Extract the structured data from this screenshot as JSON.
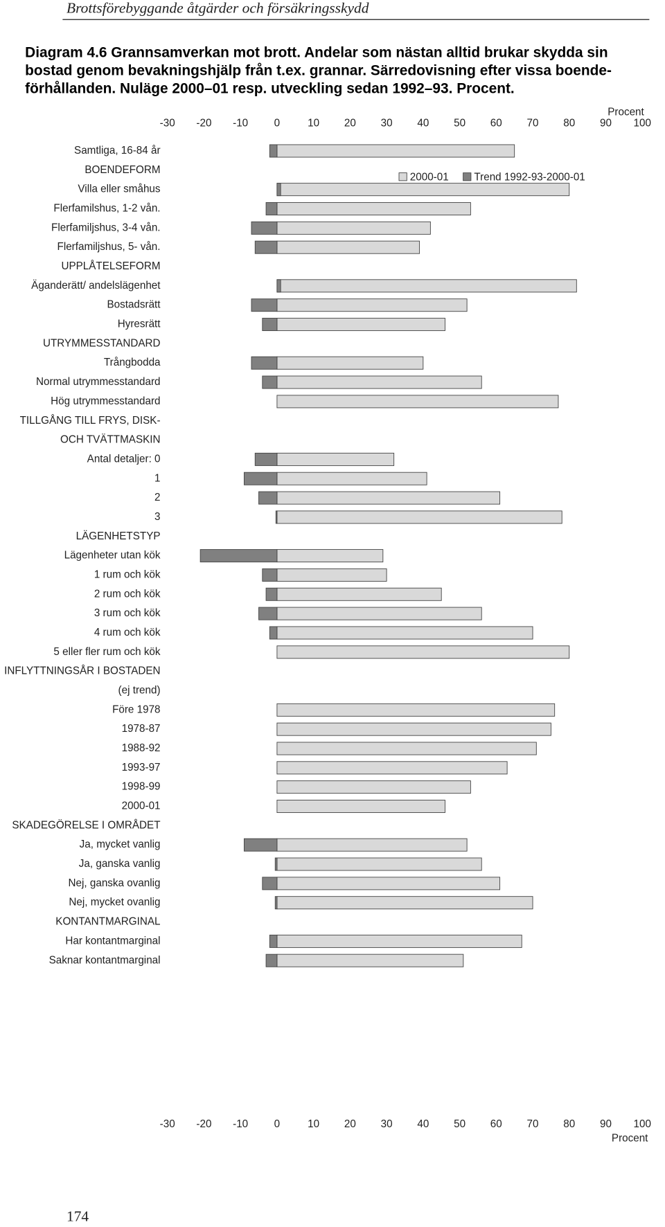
{
  "page_header": "Brottsförebyggande åtgärder och försäkringsskydd",
  "page_number": "174",
  "chart_data": {
    "type": "bar",
    "orientation": "horizontal",
    "title": [
      "Diagram 4.6  Grannsamverkan mot brott. Andelar som nästan alltid brukar skydda sin",
      "bostad genom bevakningshjälp från t.ex. grannar. Särredovisning efter vissa boende-",
      "förhållanden. Nuläge 2000–01 resp. utveckling sedan 1992–93. Procent."
    ],
    "xlabel": "Procent",
    "xlim": [
      -30,
      100
    ],
    "xticks": [
      -30,
      -20,
      -10,
      0,
      10,
      20,
      30,
      40,
      50,
      60,
      70,
      80,
      90,
      100
    ],
    "legend": "top-right",
    "categories": [
      "Samtliga, 16-84 år",
      "BOENDEFORM",
      "Villa eller småhus",
      "Flerfamilshus, 1-2 vån.",
      "Flerfamiljshus, 3-4 vån.",
      "Flerfamiljshus, 5- vån.",
      "UPPLÅTELSEFORM",
      "Äganderätt/ andelslägenhet",
      "Bostadsrätt",
      "Hyresrätt",
      "UTRYMMESSTANDARD",
      "Trångbodda",
      "Normal utrymmesstandard",
      "Hög utrymmesstandard",
      "TILLGÅNG TILL FRYS, DISK-",
      "OCH TVÄTTMASKIN",
      "Antal detaljer: 0",
      "1",
      "2",
      "3",
      "LÄGENHETSTYP",
      "Lägenheter utan kök",
      "1 rum och kök",
      "2 rum och kök",
      "3 rum och kök",
      "4 rum och kök",
      "5 eller fler rum och kök",
      "INFLYTTNINGSÅR I BOSTADEN",
      "(ej trend)",
      "Före 1978",
      "1978-87",
      "1988-92",
      "1993-97",
      "1998-99",
      "2000-01",
      "SKADEGÖRELSE I OMRÅDET",
      "Ja, mycket vanlig",
      "Ja, ganska vanlig",
      "Nej, ganska ovanlig",
      "Nej, mycket ovanlig",
      "KONTANTMARGINAL",
      "Har kontantmarginal",
      "Saknar kontantmarginal"
    ],
    "series": [
      {
        "name": "2000-01",
        "color": "#d9d9d9",
        "values": [
          65,
          null,
          80,
          53,
          42,
          39,
          null,
          82,
          52,
          46,
          null,
          40,
          56,
          77,
          null,
          null,
          32,
          41,
          61,
          78,
          null,
          29,
          30,
          45,
          56,
          70,
          80,
          null,
          null,
          76,
          75,
          71,
          63,
          53,
          46,
          null,
          52,
          56,
          61,
          70,
          null,
          67,
          51
        ]
      },
      {
        "name": "Trend 1992-93-2000-01",
        "color": "#808080",
        "values": [
          -2,
          null,
          1,
          -3,
          -7,
          -6,
          null,
          1,
          -7,
          -4,
          null,
          -7,
          -4,
          0,
          null,
          null,
          -6,
          -9,
          -5,
          -0.3,
          null,
          -21,
          -4,
          -3,
          -5,
          -2,
          0,
          null,
          null,
          null,
          null,
          null,
          null,
          null,
          null,
          null,
          -9,
          -0.5,
          -4,
          -0.5,
          null,
          -2,
          -3
        ]
      }
    ]
  }
}
